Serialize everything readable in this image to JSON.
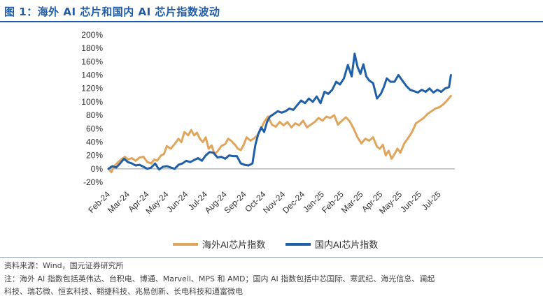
{
  "figure": {
    "title": "图 1：海外 AI 芯片和国内 AI 芯片指数波动",
    "source": "资料来源：Wind，国元证券研究所",
    "note_line1": "注：海外 AI 指数包括英伟达、台积电、博通、Marvell、MPS 和 AMD；国内 AI 指数包括中芯国际、寒武纪、海光信息、澜起",
    "note_line2": "科技、瑞芯微、恒玄科技、翱捷科技、兆易创新、长电科技和通富微电"
  },
  "colors": {
    "overseas": "#E0A55C",
    "domestic": "#1F5FA8",
    "accent": "#1f5ba8"
  },
  "chart_data": {
    "type": "line",
    "title": "",
    "xlabel": "",
    "ylabel": "",
    "ylim": [
      -0.2,
      2.0
    ],
    "yticks": [
      "-20%",
      "0%",
      "20%",
      "40%",
      "60%",
      "80%",
      "100%",
      "120%",
      "140%",
      "160%",
      "180%",
      "200%"
    ],
    "xlim": [
      0,
      17.8
    ],
    "categories": [
      "Feb-24",
      "Mar-24",
      "Apr-24",
      "May-24",
      "Jun-24",
      "Jul-24",
      "Aug-24",
      "Sep-24",
      "Oct-24",
      "Nov-24",
      "Dec-24",
      "Jan-25",
      "Feb-25",
      "Mar-25",
      "Apr-25",
      "May-25",
      "Jun-25",
      "Jul-25"
    ],
    "grid": false,
    "legend_position": "bottom",
    "series": [
      {
        "name": "海外AI芯片指数",
        "color_key": "overseas",
        "x": [
          0,
          0.15,
          0.3,
          0.5,
          0.7,
          0.85,
          1.0,
          1.2,
          1.4,
          1.6,
          1.8,
          2.0,
          2.2,
          2.35,
          2.5,
          2.7,
          2.85,
          3.0,
          3.2,
          3.4,
          3.6,
          3.75,
          3.9,
          4.1,
          4.25,
          4.4,
          4.55,
          4.7,
          4.85,
          5.0,
          5.15,
          5.3,
          5.45,
          5.6,
          5.8,
          6.0,
          6.15,
          6.3,
          6.5,
          6.65,
          6.8,
          6.95,
          7.1,
          7.3,
          7.5,
          7.65,
          7.8,
          8.0,
          8.2,
          8.4,
          8.6,
          8.8,
          9.0,
          9.2,
          9.4,
          9.6,
          9.8,
          10.0,
          10.2,
          10.4,
          10.6,
          10.8,
          11.0,
          11.2,
          11.4,
          11.6,
          11.8,
          12.0,
          12.2,
          12.4,
          12.6,
          12.8,
          13.0,
          13.2,
          13.4,
          13.6,
          13.8,
          13.95,
          14.1,
          14.25,
          14.4,
          14.55,
          14.7,
          14.85,
          15.0,
          15.2,
          15.4,
          15.6,
          15.8,
          16.0,
          16.2,
          16.4,
          16.6,
          16.8,
          17.0,
          17.2,
          17.4,
          17.6
        ],
        "values": [
          0.0,
          -0.05,
          0.04,
          0.1,
          0.15,
          0.18,
          0.14,
          0.16,
          0.12,
          0.17,
          0.18,
          0.1,
          0.08,
          0.14,
          0.12,
          0.2,
          0.22,
          0.34,
          0.3,
          0.37,
          0.45,
          0.4,
          0.55,
          0.5,
          0.58,
          0.5,
          0.54,
          0.45,
          0.4,
          0.47,
          0.3,
          0.35,
          0.22,
          0.26,
          0.34,
          0.37,
          0.45,
          0.42,
          0.36,
          0.3,
          0.28,
          0.36,
          0.47,
          0.42,
          0.46,
          0.5,
          0.57,
          0.7,
          0.78,
          0.66,
          0.63,
          0.7,
          0.65,
          0.7,
          0.62,
          0.68,
          0.65,
          0.72,
          0.62,
          0.66,
          0.7,
          0.76,
          0.72,
          0.78,
          0.76,
          0.8,
          0.66,
          0.72,
          0.77,
          0.71,
          0.6,
          0.47,
          0.38,
          0.45,
          0.42,
          0.47,
          0.33,
          0.3,
          0.36,
          0.2,
          0.27,
          0.15,
          0.22,
          0.3,
          0.24,
          0.38,
          0.46,
          0.55,
          0.68,
          0.72,
          0.76,
          0.82,
          0.86,
          0.9,
          0.92,
          0.96,
          1.02,
          1.09
        ]
      },
      {
        "name": "国内AI芯片指数",
        "color_key": "domestic",
        "x": [
          0,
          0.2,
          0.4,
          0.6,
          0.8,
          1.0,
          1.2,
          1.4,
          1.6,
          1.8,
          2.0,
          2.2,
          2.4,
          2.6,
          2.8,
          3.0,
          3.2,
          3.4,
          3.6,
          3.8,
          4.0,
          4.2,
          4.4,
          4.6,
          4.8,
          5.0,
          5.2,
          5.4,
          5.6,
          5.8,
          6.0,
          6.2,
          6.4,
          6.6,
          6.8,
          7.0,
          7.2,
          7.4,
          7.55,
          7.7,
          7.85,
          8.0,
          8.15,
          8.3,
          8.5,
          8.7,
          8.9,
          9.1,
          9.3,
          9.5,
          9.7,
          9.9,
          10.1,
          10.3,
          10.5,
          10.7,
          10.9,
          11.1,
          11.3,
          11.5,
          11.7,
          11.9,
          12.1,
          12.3,
          12.5,
          12.65,
          12.8,
          12.95,
          13.1,
          13.25,
          13.4,
          13.6,
          13.8,
          14.0,
          14.15,
          14.3,
          14.5,
          14.7,
          14.9,
          15.1,
          15.3,
          15.5,
          15.7,
          15.9,
          16.1,
          16.3,
          16.5,
          16.7,
          16.9,
          17.1,
          17.3,
          17.5,
          17.6
        ],
        "values": [
          0.0,
          0.04,
          0.02,
          0.08,
          0.15,
          0.1,
          0.08,
          0.05,
          0.06,
          0.03,
          0.0,
          0.02,
          0.08,
          -0.01,
          0.03,
          0.04,
          0.02,
          0.0,
          0.06,
          0.08,
          0.12,
          0.1,
          0.13,
          0.16,
          0.12,
          0.2,
          0.25,
          0.24,
          0.17,
          0.18,
          0.15,
          0.2,
          0.19,
          0.19,
          0.08,
          0.06,
          0.05,
          0.08,
          0.36,
          0.52,
          0.62,
          0.55,
          0.7,
          0.78,
          0.82,
          0.86,
          0.84,
          0.86,
          0.9,
          0.88,
          0.95,
          1.02,
          0.98,
          1.05,
          1.0,
          1.08,
          0.98,
          1.15,
          1.12,
          1.18,
          1.3,
          1.26,
          1.35,
          1.55,
          1.38,
          1.72,
          1.52,
          1.42,
          1.56,
          1.38,
          1.32,
          1.28,
          1.05,
          1.12,
          1.22,
          1.35,
          1.3,
          1.3,
          1.4,
          1.32,
          1.24,
          1.18,
          1.16,
          1.14,
          1.18,
          1.15,
          1.2,
          1.14,
          1.18,
          1.15,
          1.2,
          1.22,
          1.4
        ]
      }
    ]
  }
}
